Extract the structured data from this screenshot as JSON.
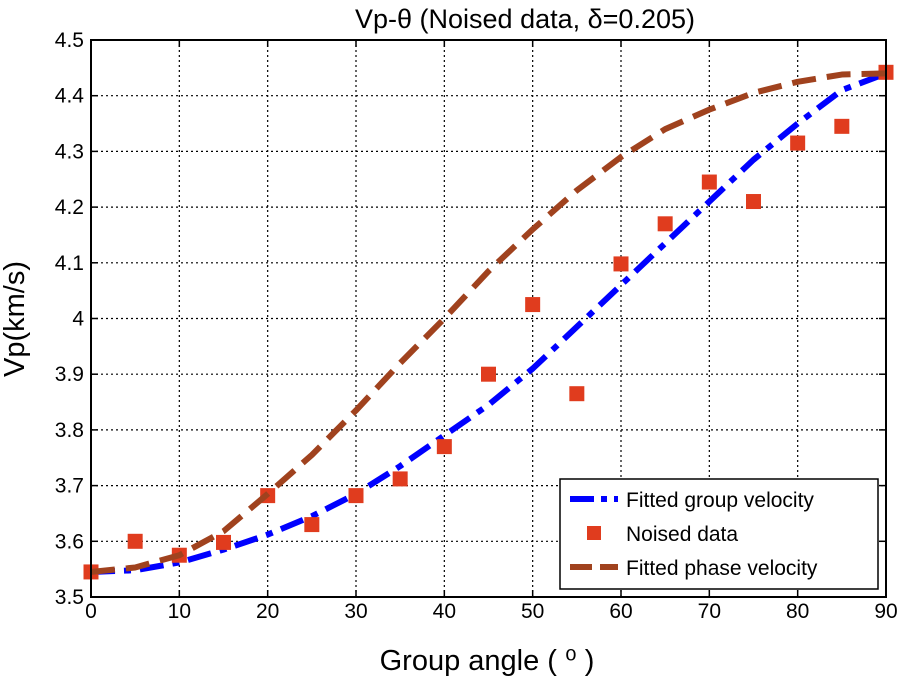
{
  "chart_data": {
    "type": "line",
    "title": "Vp-θ (Noised data, δ=0.205)",
    "xlabel": "Group angle ( ⁰ )",
    "ylabel": "Vp(km/s)",
    "xlim": [
      0,
      90
    ],
    "ylim": [
      3.5,
      4.5
    ],
    "xticks": [
      0,
      10,
      20,
      30,
      40,
      50,
      60,
      70,
      80,
      90
    ],
    "yticks": [
      3.5,
      3.6,
      3.7,
      3.8,
      3.9,
      4,
      4.1,
      4.2,
      4.3,
      4.4,
      4.5
    ],
    "xtick_labels": [
      "0",
      "10",
      "20",
      "30",
      "40",
      "50",
      "60",
      "70",
      "80",
      "90"
    ],
    "ytick_labels": [
      "3.5",
      "3.6",
      "3.7",
      "3.8",
      "3.9",
      "4",
      "4.1",
      "4.2",
      "4.3",
      "4.4",
      "4.5"
    ],
    "grid": true,
    "legend_position": "bottom-right",
    "series": [
      {
        "name": "Fitted group velocity",
        "style": "dashdot",
        "color": "#0000ff",
        "x": [
          0,
          5,
          10,
          15,
          20,
          25,
          30,
          35,
          40,
          45,
          50,
          55,
          60,
          65,
          70,
          75,
          80,
          85,
          90
        ],
        "y": [
          3.545,
          3.548,
          3.562,
          3.585,
          3.612,
          3.645,
          3.685,
          3.735,
          3.79,
          3.845,
          3.91,
          3.985,
          4.06,
          4.135,
          4.21,
          4.285,
          4.35,
          4.41,
          4.44
        ]
      },
      {
        "name": "Noised data",
        "style": "marker",
        "color": "#e03c1e",
        "x": [
          0,
          5,
          10,
          15,
          20,
          25,
          30,
          35,
          40,
          45,
          50,
          55,
          60,
          65,
          70,
          75,
          80,
          85,
          90
        ],
        "y": [
          3.545,
          3.6,
          3.575,
          3.598,
          3.682,
          3.63,
          3.682,
          3.712,
          3.77,
          3.9,
          4.025,
          3.865,
          4.098,
          4.17,
          4.245,
          4.21,
          4.315,
          4.345,
          4.442
        ]
      },
      {
        "name": "Fitted phase velocity",
        "style": "dashed",
        "color": "#a0421e",
        "x": [
          0,
          5,
          10,
          15,
          20,
          25,
          30,
          35,
          40,
          45,
          50,
          55,
          60,
          65,
          70,
          75,
          80,
          85,
          90
        ],
        "y": [
          3.545,
          3.553,
          3.575,
          3.618,
          3.685,
          3.755,
          3.835,
          3.92,
          4.0,
          4.085,
          4.16,
          4.23,
          4.29,
          4.34,
          4.375,
          4.405,
          4.425,
          4.438,
          4.44
        ]
      }
    ]
  }
}
